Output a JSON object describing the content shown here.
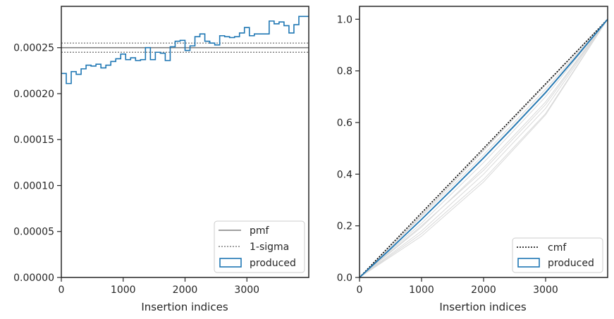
{
  "figure": {
    "left_panel": {
      "xlabel": "Insertion indices"
    },
    "right_panel": {
      "xlabel": "Insertion indices"
    }
  },
  "colors": {
    "produced": "#1f77b4",
    "pmf": "#808080",
    "sigma": "#808080",
    "cmf": "#000000",
    "background_curves": "#d9d9d9",
    "axes": "#262626"
  },
  "chart_data": [
    {
      "type": "line",
      "subtype": "step-histogram",
      "xlabel": "Insertion indices",
      "ylabel": "",
      "xlim": [
        0,
        4000
      ],
      "ylim": [
        0,
        0.000295
      ],
      "xticks": [
        0,
        1000,
        2000,
        3000
      ],
      "xtick_labels": [
        "0",
        "1000",
        "2000",
        "3000"
      ],
      "yticks": [
        0,
        5e-05,
        0.0001,
        0.00015,
        0.0002,
        0.00025
      ],
      "ytick_labels": [
        "0.00000",
        "0.00005",
        "0.00010",
        "0.00015",
        "0.00020",
        "0.00025"
      ],
      "grid": false,
      "legend": {
        "placement": "lower-right",
        "entries": [
          "pmf",
          "1-sigma",
          "produced"
        ]
      },
      "pmf": 0.00025,
      "sigma_band": [
        0.000245,
        0.000255
      ],
      "series": [
        {
          "name": "produced",
          "bin_width": 80,
          "x_start": 0,
          "values": [
            0.000222,
            0.000211,
            0.000224,
            0.000221,
            0.000227,
            0.000231,
            0.00023,
            0.000232,
            0.000228,
            0.000231,
            0.000235,
            0.000238,
            0.000243,
            0.000237,
            0.000239,
            0.000236,
            0.000237,
            0.00025,
            0.000237,
            0.000245,
            0.000244,
            0.000236,
            0.000251,
            0.000257,
            0.000258,
            0.000247,
            0.000252,
            0.000262,
            0.000265,
            0.000257,
            0.000255,
            0.000253,
            0.000263,
            0.000262,
            0.000261,
            0.000262,
            0.000266,
            0.000272,
            0.000263,
            0.000265,
            0.000265,
            0.000265,
            0.000279,
            0.000276,
            0.000278,
            0.000274,
            0.000266,
            0.000275,
            0.000284,
            0.000284
          ]
        }
      ]
    },
    {
      "type": "line",
      "subtype": "cumulative",
      "xlabel": "Insertion indices",
      "ylabel": "",
      "xlim": [
        0,
        4000
      ],
      "ylim": [
        0,
        1.05
      ],
      "xticks": [
        0,
        1000,
        2000,
        3000
      ],
      "xtick_labels": [
        "0",
        "1000",
        "2000",
        "3000"
      ],
      "yticks": [
        0,
        0.2,
        0.4,
        0.6,
        0.8,
        1.0
      ],
      "ytick_labels": [
        "0.0",
        "0.2",
        "0.4",
        "0.6",
        "0.8",
        "1.0"
      ],
      "grid": false,
      "legend": {
        "placement": "lower-right",
        "entries": [
          "cmf",
          "produced"
        ]
      },
      "series": [
        {
          "name": "cmf",
          "x": [
            0,
            4000
          ],
          "y": [
            0,
            1.0
          ]
        },
        {
          "name": "produced",
          "x": [
            0,
            500,
            1000,
            1500,
            2000,
            2500,
            3000,
            3500,
            4000
          ],
          "y": [
            0,
            0.111,
            0.225,
            0.343,
            0.463,
            0.588,
            0.716,
            0.856,
            1.0
          ]
        }
      ],
      "background_curves": [
        {
          "x": [
            0,
            1000,
            2000,
            3000,
            4000
          ],
          "y": [
            0,
            0.24,
            0.49,
            0.745,
            1.0
          ]
        },
        {
          "x": [
            0,
            1000,
            2000,
            3000,
            4000
          ],
          "y": [
            0,
            0.225,
            0.465,
            0.72,
            1.0
          ]
        },
        {
          "x": [
            0,
            1000,
            2000,
            3000,
            4000
          ],
          "y": [
            0,
            0.21,
            0.445,
            0.7,
            1.0
          ]
        },
        {
          "x": [
            0,
            1000,
            2000,
            3000,
            4000
          ],
          "y": [
            0,
            0.195,
            0.425,
            0.68,
            1.0
          ]
        },
        {
          "x": [
            0,
            1000,
            2000,
            3000,
            4000
          ],
          "y": [
            0,
            0.18,
            0.4,
            0.655,
            1.0
          ]
        },
        {
          "x": [
            0,
            1000,
            2000,
            3000,
            4000
          ],
          "y": [
            0,
            0.17,
            0.38,
            0.635,
            1.0
          ]
        },
        {
          "x": [
            0,
            1000,
            2000,
            3000,
            4000
          ],
          "y": [
            0,
            0.235,
            0.475,
            0.73,
            1.0
          ]
        },
        {
          "x": [
            0,
            1000,
            2000,
            3000,
            4000
          ],
          "y": [
            0,
            0.2,
            0.415,
            0.67,
            1.0
          ]
        },
        {
          "x": [
            0,
            1000,
            2000,
            3000,
            4000
          ],
          "y": [
            0,
            0.16,
            0.37,
            0.63,
            1.0
          ]
        },
        {
          "x": [
            0,
            1000,
            2000,
            3000,
            4000
          ],
          "y": [
            0,
            0.245,
            0.495,
            0.75,
            1.0
          ]
        }
      ]
    }
  ]
}
